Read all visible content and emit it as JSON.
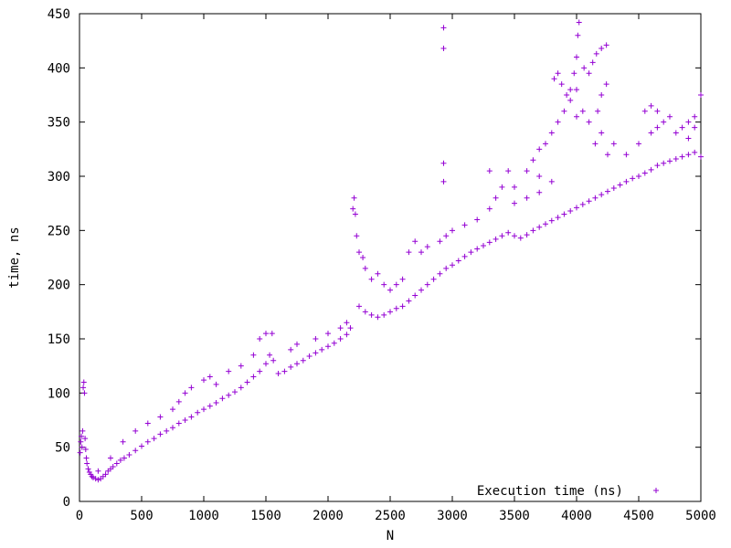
{
  "chart_data": {
    "type": "scatter",
    "title": "",
    "xlabel": "N",
    "ylabel": "time, ns",
    "xlim": [
      0,
      5000
    ],
    "ylim": [
      0,
      450
    ],
    "x_ticks": [
      0,
      500,
      1000,
      1500,
      2000,
      2500,
      3000,
      3500,
      4000,
      4500,
      5000
    ],
    "y_ticks": [
      0,
      50,
      100,
      150,
      200,
      250,
      300,
      350,
      400,
      450
    ],
    "x_tick_labels": [
      "0",
      "500",
      "1000",
      "1500",
      "2000",
      "2500",
      "3000",
      "3500",
      "4000",
      "4500",
      "5000"
    ],
    "y_tick_labels": [
      "0",
      "50",
      "100",
      "150",
      "200",
      "250",
      "300",
      "350",
      "400",
      "450"
    ],
    "grid": false,
    "legend_position": "bottom-right",
    "marker": "+",
    "series": [
      {
        "name": "Execution time (ns)",
        "color": "#9400d3",
        "points": [
          [
            5,
            45
          ],
          [
            10,
            55
          ],
          [
            15,
            60
          ],
          [
            20,
            50
          ],
          [
            25,
            65
          ],
          [
            30,
            105
          ],
          [
            35,
            110
          ],
          [
            40,
            100
          ],
          [
            45,
            58
          ],
          [
            50,
            48
          ],
          [
            55,
            40
          ],
          [
            60,
            35
          ],
          [
            70,
            30
          ],
          [
            80,
            27
          ],
          [
            90,
            25
          ],
          [
            100,
            23
          ],
          [
            110,
            22
          ],
          [
            130,
            21
          ],
          [
            150,
            20
          ],
          [
            170,
            21
          ],
          [
            190,
            23
          ],
          [
            210,
            25
          ],
          [
            230,
            28
          ],
          [
            250,
            30
          ],
          [
            270,
            32
          ],
          [
            300,
            35
          ],
          [
            330,
            38
          ],
          [
            360,
            40
          ],
          [
            400,
            43
          ],
          [
            450,
            47
          ],
          [
            500,
            51
          ],
          [
            550,
            55
          ],
          [
            600,
            58
          ],
          [
            650,
            62
          ],
          [
            700,
            65
          ],
          [
            750,
            68
          ],
          [
            800,
            72
          ],
          [
            850,
            75
          ],
          [
            900,
            78
          ],
          [
            950,
            82
          ],
          [
            1000,
            85
          ],
          [
            1050,
            88
          ],
          [
            1100,
            91
          ],
          [
            1150,
            95
          ],
          [
            1200,
            98
          ],
          [
            1250,
            101
          ],
          [
            1300,
            105
          ],
          [
            1350,
            110
          ],
          [
            1400,
            115
          ],
          [
            1450,
            120
          ],
          [
            1500,
            127
          ],
          [
            1530,
            135
          ],
          [
            1560,
            130
          ],
          [
            1600,
            118
          ],
          [
            1650,
            120
          ],
          [
            1700,
            124
          ],
          [
            1750,
            127
          ],
          [
            1800,
            130
          ],
          [
            1850,
            134
          ],
          [
            1900,
            137
          ],
          [
            1950,
            140
          ],
          [
            2000,
            143
          ],
          [
            2050,
            146
          ],
          [
            2100,
            150
          ],
          [
            2150,
            154
          ],
          [
            2180,
            160
          ],
          [
            2200,
            270
          ],
          [
            2210,
            280
          ],
          [
            2220,
            265
          ],
          [
            2230,
            245
          ],
          [
            2250,
            180
          ],
          [
            2300,
            175
          ],
          [
            2350,
            172
          ],
          [
            2400,
            170
          ],
          [
            2450,
            172
          ],
          [
            2500,
            175
          ],
          [
            2550,
            178
          ],
          [
            2600,
            180
          ],
          [
            2650,
            185
          ],
          [
            2700,
            190
          ],
          [
            2750,
            195
          ],
          [
            2800,
            200
          ],
          [
            2850,
            205
          ],
          [
            2900,
            210
          ],
          [
            2950,
            215
          ],
          [
            3000,
            218
          ],
          [
            3050,
            222
          ],
          [
            3100,
            226
          ],
          [
            3150,
            230
          ],
          [
            3200,
            233
          ],
          [
            3250,
            236
          ],
          [
            3300,
            239
          ],
          [
            3350,
            242
          ],
          [
            3400,
            245
          ],
          [
            3450,
            248
          ],
          [
            3500,
            245
          ],
          [
            3550,
            243
          ],
          [
            3600,
            246
          ],
          [
            3650,
            250
          ],
          [
            3700,
            253
          ],
          [
            3750,
            256
          ],
          [
            3800,
            259
          ],
          [
            3850,
            262
          ],
          [
            3900,
            265
          ],
          [
            3950,
            268
          ],
          [
            4000,
            271
          ],
          [
            4050,
            274
          ],
          [
            4100,
            277
          ],
          [
            4150,
            280
          ],
          [
            4200,
            283
          ],
          [
            4250,
            286
          ],
          [
            4300,
            289
          ],
          [
            4350,
            292
          ],
          [
            4400,
            295
          ],
          [
            4450,
            298
          ],
          [
            4500,
            300
          ],
          [
            4550,
            303
          ],
          [
            4600,
            306
          ],
          [
            4650,
            310
          ],
          [
            4700,
            312
          ],
          [
            4750,
            314
          ],
          [
            4800,
            316
          ],
          [
            4850,
            318
          ],
          [
            4900,
            320
          ],
          [
            4950,
            322
          ],
          [
            5000,
            318
          ],
          [
            150,
            28
          ],
          [
            250,
            40
          ],
          [
            350,
            55
          ],
          [
            450,
            65
          ],
          [
            550,
            72
          ],
          [
            650,
            78
          ],
          [
            750,
            85
          ],
          [
            800,
            92
          ],
          [
            850,
            100
          ],
          [
            900,
            105
          ],
          [
            1000,
            112
          ],
          [
            1050,
            115
          ],
          [
            1100,
            108
          ],
          [
            1200,
            120
          ],
          [
            1300,
            125
          ],
          [
            1400,
            135
          ],
          [
            1450,
            150
          ],
          [
            1500,
            155
          ],
          [
            1550,
            155
          ],
          [
            1700,
            140
          ],
          [
            1750,
            145
          ],
          [
            1900,
            150
          ],
          [
            2000,
            155
          ],
          [
            2100,
            160
          ],
          [
            2150,
            165
          ],
          [
            2250,
            230
          ],
          [
            2280,
            225
          ],
          [
            2300,
            215
          ],
          [
            2350,
            205
          ],
          [
            2400,
            210
          ],
          [
            2450,
            200
          ],
          [
            2500,
            195
          ],
          [
            2550,
            200
          ],
          [
            2600,
            205
          ],
          [
            2650,
            230
          ],
          [
            2700,
            240
          ],
          [
            2750,
            230
          ],
          [
            2800,
            235
          ],
          [
            2900,
            240
          ],
          [
            2950,
            245
          ],
          [
            3000,
            250
          ],
          [
            3100,
            255
          ],
          [
            3200,
            260
          ],
          [
            3300,
            270
          ],
          [
            3350,
            280
          ],
          [
            3400,
            290
          ],
          [
            3500,
            275
          ],
          [
            3600,
            280
          ],
          [
            3700,
            285
          ],
          [
            3800,
            295
          ],
          [
            3850,
            350
          ],
          [
            3900,
            360
          ],
          [
            3950,
            370
          ],
          [
            4000,
            380
          ],
          [
            4050,
            360
          ],
          [
            4100,
            350
          ],
          [
            4150,
            330
          ],
          [
            4200,
            340
          ],
          [
            4250,
            320
          ],
          [
            4300,
            330
          ],
          [
            4400,
            320
          ],
          [
            4500,
            330
          ],
          [
            4600,
            340
          ],
          [
            4650,
            360
          ],
          [
            4700,
            350
          ],
          [
            4800,
            340
          ],
          [
            4900,
            335
          ],
          [
            4950,
            345
          ],
          [
            5000,
            375
          ],
          [
            2930,
            437
          ],
          [
            2930,
            418
          ],
          [
            2930,
            312
          ],
          [
            2930,
            295
          ],
          [
            3820,
            390
          ],
          [
            3850,
            395
          ],
          [
            3880,
            385
          ],
          [
            3920,
            375
          ],
          [
            3950,
            380
          ],
          [
            3980,
            395
          ],
          [
            4000,
            410
          ],
          [
            4010,
            430
          ],
          [
            4020,
            442
          ],
          [
            4060,
            400
          ],
          [
            4100,
            395
          ],
          [
            4130,
            405
          ],
          [
            4160,
            413
          ],
          [
            4200,
            418
          ],
          [
            4240,
            421
          ],
          [
            4170,
            360
          ],
          [
            4200,
            375
          ],
          [
            4240,
            385
          ],
          [
            4000,
            355
          ],
          [
            3800,
            340
          ],
          [
            3750,
            330
          ],
          [
            3700,
            325
          ],
          [
            3300,
            305
          ],
          [
            3450,
            305
          ],
          [
            3600,
            305
          ],
          [
            3650,
            315
          ],
          [
            3700,
            300
          ],
          [
            3500,
            290
          ],
          [
            4550,
            360
          ],
          [
            4600,
            365
          ],
          [
            4650,
            345
          ],
          [
            4750,
            355
          ],
          [
            4850,
            345
          ],
          [
            4900,
            350
          ],
          [
            4950,
            355
          ]
        ]
      }
    ]
  }
}
